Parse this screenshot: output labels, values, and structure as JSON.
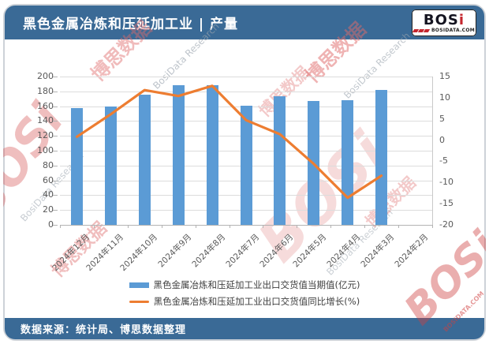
{
  "header": {
    "title": "黑色金属冶炼和压延加工业 | 产量",
    "logo": {
      "main": "BOS",
      "accent": "i",
      "domain": "BOSIDATA.COM"
    }
  },
  "footer": {
    "source_text": "数据来源：统计局、博思数据整理"
  },
  "watermarks": {
    "brand": "BOSi",
    "cn": "博思数据",
    "research": "BosiData Research",
    "domain": "BOSIDATA.COM"
  },
  "colors": {
    "header_bg": "#3a6a96",
    "bar": "#5b9bd5",
    "line": "#ed7d31",
    "grid": "#dcdcdc",
    "axis_text": "#595959"
  },
  "chart_data": {
    "type": "bar+line combo",
    "categories": [
      "2024年12月",
      "2024年11月",
      "2024年10月",
      "2024年9月",
      "2024年8月",
      "2024年7月",
      "2024年6月",
      "2024年5月",
      "2024年4月",
      "2024年3月",
      "2024年2月"
    ],
    "series": [
      {
        "name": "黑色金属冶炼和压延加工业出口交货值当期值(亿元)",
        "type": "bar",
        "axis": "left",
        "color": "#5b9bd5",
        "values": [
          157,
          160,
          176,
          188,
          188,
          161,
          173,
          167,
          168,
          182,
          null
        ]
      },
      {
        "name": "黑色金属冶炼和压延加工业出口交货值同比增长(%)",
        "type": "line",
        "axis": "right",
        "color": "#ed7d31",
        "values": [
          0.8,
          6.1,
          11.8,
          10.4,
          12.8,
          4.7,
          1.4,
          -5.6,
          -13.6,
          -8.4,
          null
        ]
      }
    ],
    "left_axis": {
      "min": 0,
      "max": 200,
      "step": 20,
      "ticks": [
        200,
        180,
        160,
        140,
        120,
        100,
        80,
        60,
        40,
        20,
        0
      ]
    },
    "right_axis": {
      "min": -20,
      "max": 15,
      "step": 5,
      "ticks": [
        15,
        10,
        5,
        0,
        -5,
        -10,
        -15,
        -20
      ]
    },
    "grid": true,
    "legend_position": "bottom"
  }
}
